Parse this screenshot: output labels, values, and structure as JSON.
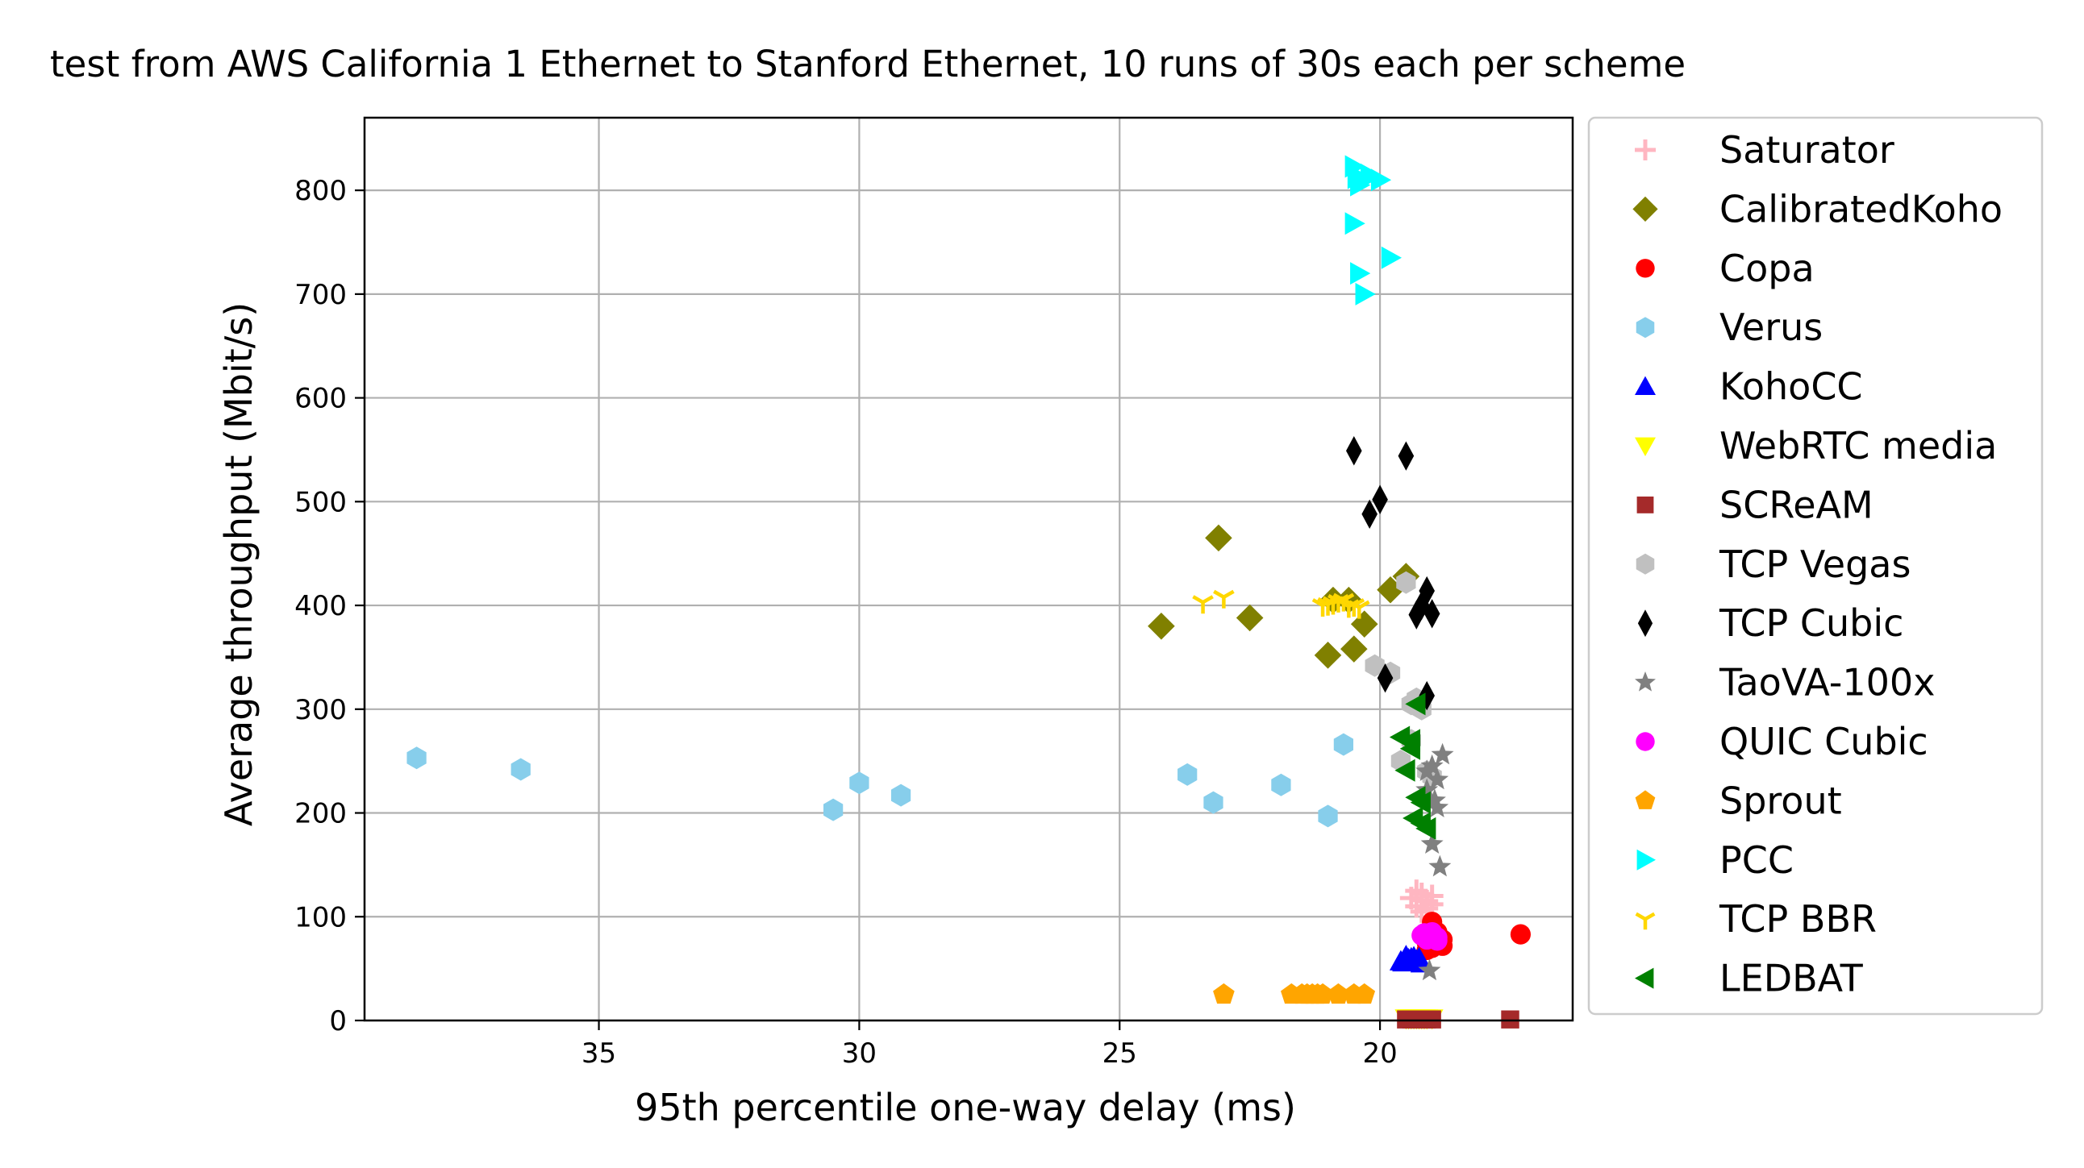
{
  "chart_data": {
    "type": "scatter",
    "title": "test from AWS California 1 Ethernet to Stanford Ethernet, 10 runs of 30s each per scheme",
    "xlabel": "95th percentile one-way delay (ms)",
    "ylabel": "Average throughput (Mbit/s)",
    "x_inverted": true,
    "xlim": [
      39.5,
      16.3
    ],
    "ylim": [
      0,
      870
    ],
    "xticks": [
      35,
      30,
      25,
      20
    ],
    "yticks": [
      0,
      100,
      200,
      300,
      400,
      500,
      600,
      700,
      800
    ],
    "grid": true,
    "legend_position": "outside-right",
    "series": [
      {
        "name": "Saturator",
        "marker": "plus",
        "color": "#ffb6c1",
        "points": [
          [
            19.4,
            118
          ],
          [
            19.2,
            122
          ],
          [
            19.0,
            120
          ],
          [
            19.3,
            110
          ],
          [
            19.1,
            115
          ],
          [
            19.2,
            105
          ],
          [
            19.0,
            112
          ],
          [
            19.3,
            125
          ],
          [
            19.1,
            108
          ],
          [
            19.2,
            116
          ]
        ]
      },
      {
        "name": "CalibratedKoho",
        "marker": "diamond",
        "color": "#808000",
        "points": [
          [
            24.2,
            380
          ],
          [
            23.1,
            465
          ],
          [
            22.5,
            388
          ],
          [
            21.0,
            352
          ],
          [
            20.9,
            405
          ],
          [
            20.6,
            405
          ],
          [
            20.5,
            358
          ],
          [
            20.3,
            382
          ],
          [
            19.8,
            415
          ],
          [
            19.5,
            428
          ]
        ]
      },
      {
        "name": "Copa",
        "marker": "circle",
        "color": "#ff0000",
        "points": [
          [
            17.3,
            83
          ],
          [
            19.0,
            95
          ],
          [
            18.8,
            72
          ],
          [
            18.8,
            78
          ],
          [
            19.0,
            80
          ],
          [
            19.1,
            75
          ],
          [
            18.9,
            85
          ],
          [
            19.0,
            70
          ],
          [
            18.9,
            82
          ],
          [
            19.1,
            68
          ]
        ]
      },
      {
        "name": "Verus",
        "marker": "hexagon",
        "color": "#87ceeb",
        "points": [
          [
            38.5,
            253
          ],
          [
            36.5,
            242
          ],
          [
            30.5,
            203
          ],
          [
            30.0,
            229
          ],
          [
            29.2,
            217
          ],
          [
            23.7,
            237
          ],
          [
            23.2,
            210
          ],
          [
            21.9,
            227
          ],
          [
            21.0,
            197
          ],
          [
            20.7,
            266
          ]
        ]
      },
      {
        "name": "KohoCC",
        "marker": "triangle-up",
        "color": "#0000ff",
        "points": [
          [
            19.6,
            57
          ],
          [
            19.4,
            60
          ],
          [
            19.3,
            58
          ],
          [
            19.5,
            62
          ],
          [
            19.2,
            55
          ],
          [
            19.45,
            59
          ],
          [
            19.35,
            61
          ],
          [
            19.55,
            56
          ],
          [
            19.25,
            60
          ],
          [
            19.5,
            58
          ]
        ]
      },
      {
        "name": "WebRTC media",
        "marker": "triangle-down",
        "color": "#ffff00",
        "points": [
          [
            19.5,
            2
          ],
          [
            19.4,
            2
          ],
          [
            19.3,
            2
          ],
          [
            19.2,
            2
          ],
          [
            19.1,
            2
          ],
          [
            19.0,
            2
          ],
          [
            19.35,
            2
          ],
          [
            19.25,
            2
          ],
          [
            19.15,
            2
          ],
          [
            19.45,
            2
          ]
        ]
      },
      {
        "name": "SCReAM",
        "marker": "square",
        "color": "#a52a2a",
        "points": [
          [
            19.5,
            1
          ],
          [
            19.4,
            1
          ],
          [
            19.3,
            1
          ],
          [
            19.2,
            1
          ],
          [
            19.1,
            1
          ],
          [
            19.0,
            1
          ],
          [
            17.5,
            1
          ],
          [
            19.35,
            1
          ],
          [
            19.25,
            1
          ],
          [
            19.15,
            1
          ]
        ]
      },
      {
        "name": "TCP Vegas",
        "marker": "hexagon",
        "color": "#c0c0c0",
        "points": [
          [
            19.5,
            422
          ],
          [
            20.1,
            342
          ],
          [
            19.8,
            335
          ],
          [
            19.3,
            310
          ],
          [
            19.2,
            300
          ],
          [
            19.4,
            305
          ],
          [
            19.0,
            235
          ],
          [
            19.1,
            240
          ],
          [
            19.6,
            250
          ],
          [
            19.4,
            270
          ]
        ]
      },
      {
        "name": "TCP Cubic",
        "marker": "thin-diamond",
        "color": "#000000",
        "points": [
          [
            20.5,
            549
          ],
          [
            19.5,
            544
          ],
          [
            20.0,
            502
          ],
          [
            20.2,
            488
          ],
          [
            19.1,
            414
          ],
          [
            19.2,
            400
          ],
          [
            19.0,
            392
          ],
          [
            19.3,
            391
          ],
          [
            19.9,
            330
          ],
          [
            19.1,
            313
          ]
        ]
      },
      {
        "name": "TaoVA-100x",
        "marker": "star",
        "color": "#808080",
        "points": [
          [
            18.8,
            256
          ],
          [
            19.0,
            245
          ],
          [
            18.9,
            232
          ],
          [
            19.1,
            222
          ],
          [
            18.95,
            212
          ],
          [
            19.0,
            170
          ],
          [
            18.85,
            148
          ],
          [
            19.05,
            48
          ],
          [
            18.9,
            205
          ],
          [
            19.1,
            240
          ]
        ]
      },
      {
        "name": "QUIC Cubic",
        "marker": "circle",
        "color": "#ff00ff",
        "points": [
          [
            19.2,
            82
          ],
          [
            19.0,
            85
          ],
          [
            18.9,
            80
          ],
          [
            19.1,
            78
          ],
          [
            19.0,
            83
          ],
          [
            18.95,
            79
          ],
          [
            19.05,
            81
          ],
          [
            19.15,
            84
          ],
          [
            18.9,
            77
          ],
          [
            19.0,
            80
          ]
        ]
      },
      {
        "name": "Sprout",
        "marker": "pentagon",
        "color": "#ffa500",
        "points": [
          [
            23.0,
            25
          ],
          [
            21.7,
            25
          ],
          [
            21.5,
            25
          ],
          [
            21.3,
            25
          ],
          [
            21.1,
            25
          ],
          [
            20.8,
            25
          ],
          [
            20.5,
            25
          ],
          [
            20.3,
            25
          ],
          [
            21.2,
            25
          ],
          [
            21.4,
            25
          ]
        ]
      },
      {
        "name": "PCC",
        "marker": "triangle-right",
        "color": "#00ffff",
        "points": [
          [
            20.5,
            823
          ],
          [
            20.3,
            810
          ],
          [
            20.0,
            810
          ],
          [
            20.4,
            805
          ],
          [
            20.5,
            768
          ],
          [
            19.8,
            735
          ],
          [
            20.4,
            720
          ],
          [
            20.3,
            700
          ],
          [
            20.2,
            815
          ],
          [
            20.45,
            812
          ]
        ]
      },
      {
        "name": "TCP BBR",
        "marker": "tri-down",
        "color": "#ffd700",
        "points": [
          [
            23.4,
            403
          ],
          [
            23.0,
            408
          ],
          [
            21.1,
            400
          ],
          [
            20.7,
            405
          ],
          [
            20.4,
            398
          ],
          [
            20.9,
            402
          ],
          [
            21.0,
            401
          ],
          [
            20.6,
            399
          ],
          [
            20.8,
            404
          ],
          [
            20.5,
            400
          ]
        ]
      },
      {
        "name": "LEDBAT",
        "marker": "triangle-left",
        "color": "#008000",
        "points": [
          [
            19.3,
            305
          ],
          [
            19.6,
            273
          ],
          [
            19.4,
            262
          ],
          [
            19.5,
            241
          ],
          [
            19.3,
            215
          ],
          [
            19.2,
            190
          ],
          [
            19.1,
            185
          ],
          [
            19.4,
            270
          ],
          [
            19.35,
            195
          ],
          [
            19.2,
            210
          ]
        ]
      }
    ]
  }
}
